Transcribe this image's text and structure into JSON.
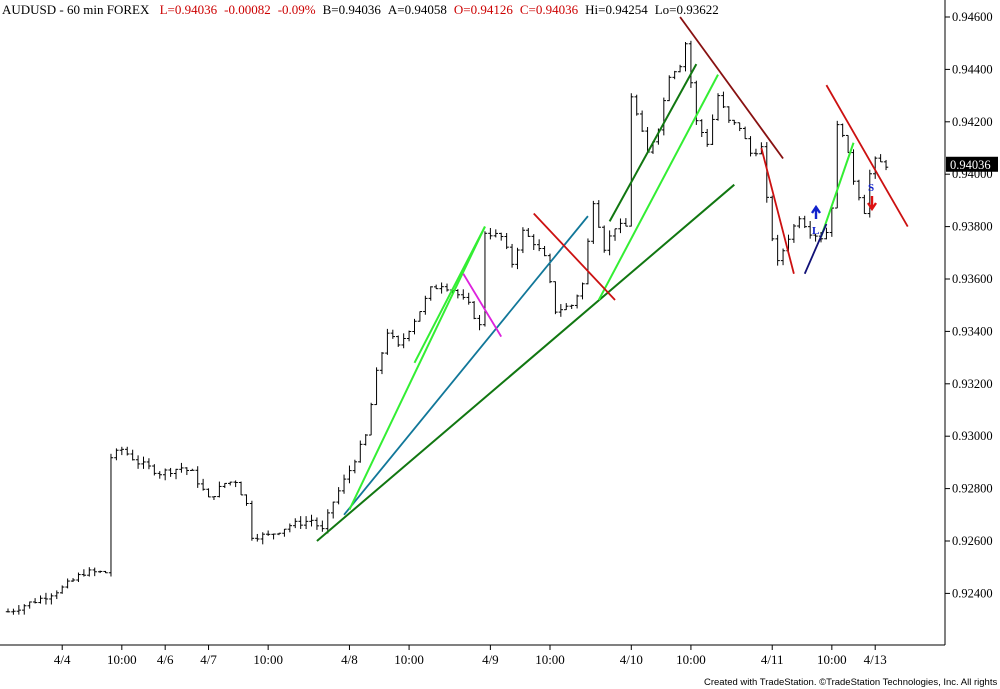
{
  "header": {
    "symbol": "AUDUSD - 60 min  FOREX",
    "fields": [
      {
        "text": "L=0.94036",
        "color": "#cc0000"
      },
      {
        "text": "-0.00082",
        "color": "#cc0000"
      },
      {
        "text": "-0.09%",
        "color": "#cc0000"
      },
      {
        "text": "B=0.94036",
        "color": "#000000"
      },
      {
        "text": "A=0.94058",
        "color": "#000000"
      },
      {
        "text": "O=0.94126",
        "color": "#cc0000"
      },
      {
        "text": "C=0.94036",
        "color": "#cc0000"
      },
      {
        "text": "Hi=0.94254",
        "color": "#000000"
      },
      {
        "text": "Lo=0.93622",
        "color": "#000000"
      }
    ]
  },
  "last_price_label": "0.94036",
  "credit": "Created with TradeStation. ©TradeStation Technologies, Inc. All rights reserved.",
  "annotations": {
    "long": "L",
    "short": "S"
  },
  "colors": {
    "bars": "#000000",
    "light_green": "#33ee33",
    "dark_green": "#117711",
    "teal": "#117799",
    "red": "#cc1111",
    "dark_red": "#881111",
    "magenta": "#dd22dd",
    "navy": "#111177",
    "blue_arrow": "#1122cc",
    "red_arrow": "#dd1111"
  },
  "chart_data": {
    "type": "ohlc",
    "title": "AUDUSD - 60 min  FOREX",
    "ylim": [
      0.9228,
      0.9466
    ],
    "y_ticks": [
      "0.94600",
      "0.94400",
      "0.94200",
      "0.94000",
      "0.93800",
      "0.93600",
      "0.93400",
      "0.93200",
      "0.93000",
      "0.92800",
      "0.92600",
      "0.92400"
    ],
    "x_tick_labels": [
      "4/4",
      "10:00",
      "4/6",
      "4/7",
      "10:00",
      "4/8",
      "10:00",
      "4/9",
      "10:00",
      "4/10",
      "10:00",
      "4/11",
      "10:00",
      "4/13"
    ],
    "x_tick_index": [
      10,
      21,
      29,
      37,
      48,
      63,
      74,
      89,
      100,
      115,
      126,
      141,
      152,
      160
    ],
    "bars_count": 160,
    "close_path": [
      [
        0,
        0.9233
      ],
      [
        6,
        0.9238
      ],
      [
        10,
        0.9242
      ],
      [
        14,
        0.9248
      ],
      [
        18,
        0.9248
      ],
      [
        19,
        0.9292
      ],
      [
        21,
        0.9295
      ],
      [
        24,
        0.929
      ],
      [
        28,
        0.9286
      ],
      [
        32,
        0.9288
      ],
      [
        34,
        0.9286
      ],
      [
        37,
        0.9276
      ],
      [
        40,
        0.9282
      ],
      [
        42,
        0.9283
      ],
      [
        44,
        0.9274
      ],
      [
        45,
        0.9262
      ],
      [
        48,
        0.9262
      ],
      [
        52,
        0.9266
      ],
      [
        56,
        0.9268
      ],
      [
        58,
        0.9264
      ],
      [
        60,
        0.9275
      ],
      [
        63,
        0.9287
      ],
      [
        66,
        0.93
      ],
      [
        68,
        0.9324
      ],
      [
        70,
        0.934
      ],
      [
        72,
        0.9334
      ],
      [
        76,
        0.9348
      ],
      [
        78,
        0.9356
      ],
      [
        80,
        0.9358
      ],
      [
        82,
        0.9356
      ],
      [
        85,
        0.935
      ],
      [
        86,
        0.9346
      ],
      [
        87,
        0.9342
      ],
      [
        88,
        0.9378
      ],
      [
        91,
        0.9376
      ],
      [
        93,
        0.9366
      ],
      [
        95,
        0.9378
      ],
      [
        97,
        0.9374
      ],
      [
        99,
        0.9368
      ],
      [
        101,
        0.9348
      ],
      [
        104,
        0.935
      ],
      [
        106,
        0.9358
      ],
      [
        108,
        0.939
      ],
      [
        110,
        0.9372
      ],
      [
        112,
        0.938
      ],
      [
        114,
        0.938
      ],
      [
        115,
        0.943
      ],
      [
        118,
        0.9408
      ],
      [
        120,
        0.9418
      ],
      [
        122,
        0.9438
      ],
      [
        124,
        0.9442
      ],
      [
        125,
        0.945
      ],
      [
        127,
        0.942
      ],
      [
        129,
        0.9412
      ],
      [
        131,
        0.943
      ],
      [
        133,
        0.942
      ],
      [
        135,
        0.9418
      ],
      [
        137,
        0.9408
      ],
      [
        139,
        0.941
      ],
      [
        140,
        0.939
      ],
      [
        141,
        0.9376
      ],
      [
        142,
        0.9366
      ],
      [
        144,
        0.9376
      ],
      [
        146,
        0.9384
      ],
      [
        148,
        0.9378
      ],
      [
        150,
        0.9376
      ],
      [
        151,
        0.9378
      ],
      [
        152,
        0.9388
      ],
      [
        153,
        0.9418
      ],
      [
        154,
        0.9416
      ],
      [
        156,
        0.9398
      ],
      [
        158,
        0.9386
      ],
      [
        159,
        0.94
      ],
      [
        160,
        0.9405
      ],
      [
        162,
        0.94036
      ]
    ],
    "trendlines": [
      {
        "color": "dark_green",
        "from": [
          57,
          0.926
        ],
        "to": [
          134,
          0.9396
        ]
      },
      {
        "color": "teal",
        "from": [
          62,
          0.927
        ],
        "to": [
          107,
          0.9384
        ]
      },
      {
        "color": "light_green",
        "from": [
          63,
          0.9272
        ],
        "to": [
          88,
          0.938
        ]
      },
      {
        "color": "light_green",
        "from": [
          75,
          0.9328
        ],
        "to": [
          88,
          0.938
        ]
      },
      {
        "color": "light_green",
        "from": [
          109,
          0.9352
        ],
        "to": [
          131,
          0.9438
        ]
      },
      {
        "color": "dark_green",
        "from": [
          111,
          0.9382
        ],
        "to": [
          127,
          0.9442
        ]
      },
      {
        "color": "light_green",
        "from": [
          150,
          0.9376
        ],
        "to": [
          156,
          0.9412
        ]
      },
      {
        "color": "magenta",
        "from": [
          84,
          0.9362
        ],
        "to": [
          91,
          0.9338
        ]
      },
      {
        "color": "red",
        "from": [
          97,
          0.9385
        ],
        "to": [
          112,
          0.9352
        ]
      },
      {
        "color": "red",
        "from": [
          139,
          0.941
        ],
        "to": [
          145,
          0.9362
        ]
      },
      {
        "color": "red",
        "from": [
          151,
          0.9434
        ],
        "to": [
          166,
          0.938
        ]
      },
      {
        "color": "dark_red",
        "from": [
          124,
          0.946
        ],
        "to": [
          143,
          0.9406
        ]
      },
      {
        "color": "navy",
        "from": [
          147,
          0.9362
        ],
        "to": [
          151,
          0.9381
        ]
      }
    ]
  }
}
